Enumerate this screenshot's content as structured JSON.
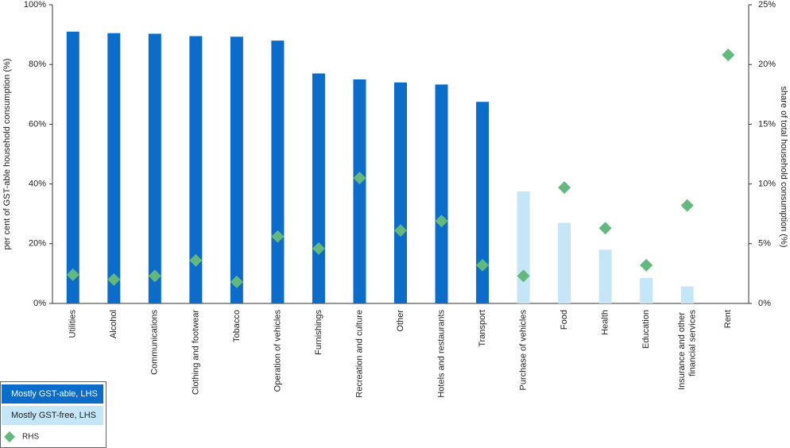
{
  "chart_data": {
    "type": "bar",
    "categories": [
      "Utilities",
      "Alcohol",
      "Communications",
      "Clothing and footwear",
      "Tobacco",
      "Operation of vehicles",
      "Furnishings",
      "Recreation and culture",
      "Other",
      "Hotels and restaurants",
      "Transport",
      "Purchase of vehicles",
      "Food",
      "Health",
      "Education",
      "Insurance and other financial services",
      "Rent"
    ],
    "y_label": "per cent of GST-able household consumption (%)",
    "y2_label": "share of total household consumption (%)",
    "ylim": [
      0,
      100
    ],
    "yticks": [
      {
        "value": 0,
        "label": "0%"
      },
      {
        "value": 20,
        "label": "20%"
      },
      {
        "value": 40,
        "label": "40%"
      },
      {
        "value": 60,
        "label": "60%"
      },
      {
        "value": 80,
        "label": "80%"
      },
      {
        "value": 100,
        "label": "100%"
      }
    ],
    "y2lim": [
      0,
      25
    ],
    "y2ticks": [
      {
        "value": 0,
        "label": "0%"
      },
      {
        "value": 5,
        "label": "5%"
      },
      {
        "value": 10,
        "label": "10%"
      },
      {
        "value": 15,
        "label": "15%"
      },
      {
        "value": 20,
        "label": "20%"
      },
      {
        "value": 25,
        "label": "25%"
      }
    ],
    "legend": "bottom-left",
    "series": [
      {
        "name": "Mostly GST-able, LHS",
        "type": "bar",
        "color": "#0b6cc9",
        "values": [
          91,
          90.5,
          90.3,
          89.5,
          89.3,
          88,
          77,
          75,
          74,
          73.3,
          67.5,
          null,
          null,
          null,
          null,
          null,
          null
        ]
      },
      {
        "name": "Mostly GST-free, LHS",
        "type": "bar",
        "color": "#c4e6f7",
        "values": [
          null,
          null,
          null,
          null,
          null,
          null,
          null,
          null,
          null,
          null,
          null,
          37.5,
          27,
          18,
          8.5,
          5.7,
          null
        ]
      },
      {
        "name": "RHS",
        "type": "scatter",
        "axis": "y2",
        "color": "#62b87d",
        "values": [
          2.4,
          2.0,
          2.3,
          3.6,
          1.8,
          5.6,
          4.6,
          10.5,
          6.1,
          6.9,
          3.2,
          2.3,
          9.7,
          6.3,
          3.2,
          8.2,
          20.8
        ]
      }
    ]
  }
}
